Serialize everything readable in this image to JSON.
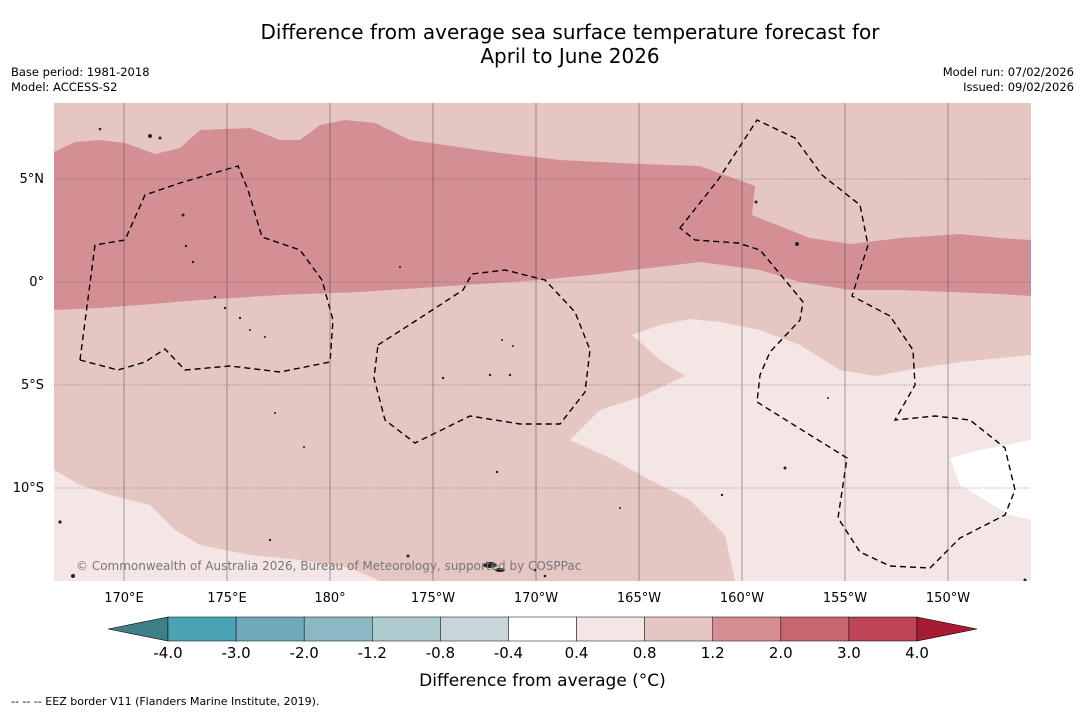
{
  "title": {
    "line1": "Difference from average sea surface temperature forecast for",
    "line2": "April to June 2026"
  },
  "meta": {
    "base_period": "Base period: 1981-2018",
    "model": "Model: ACCESS-S2",
    "model_run": "Model run: 07/02/2026",
    "issued": "Issued: 09/02/2026"
  },
  "map": {
    "lat_labels": [
      "5°N",
      "0°",
      "5°S",
      "10°S"
    ],
    "lon_labels": [
      "170°E",
      "175°E",
      "180°",
      "175°W",
      "170°W",
      "165°W",
      "160°W",
      "155°W",
      "150°W"
    ],
    "copyright": "© Commonwealth of Australia 2026, Bureau of Meteorology, supported by COSPPac",
    "colors": {
      "anom_0_4_0_8": "#f4e6e5",
      "anom_0_8_1_2": "#e6c6c3",
      "anom_1_2_2_0": "#d48f95",
      "anom_neutral": "#ffffff"
    }
  },
  "colorbar": {
    "ticks": [
      "-4.0",
      "-3.0",
      "-2.0",
      "-1.2",
      "-0.8",
      "-0.4",
      "0.4",
      "0.8",
      "1.2",
      "2.0",
      "3.0",
      "4.0"
    ],
    "colors": [
      "#3e7f87",
      "#4aa3b3",
      "#6eaab9",
      "#8db7c2",
      "#aecbcf",
      "#c8d6da",
      "#ffffff",
      "#f4e6e5",
      "#e6c6c3",
      "#d48f95",
      "#c8666f",
      "#bd4555",
      "#a81b35"
    ],
    "label": "Difference from average (°C)"
  },
  "footnote": "--  --  -- EEZ border V11 (Flanders Marine Institute, 2019)."
}
